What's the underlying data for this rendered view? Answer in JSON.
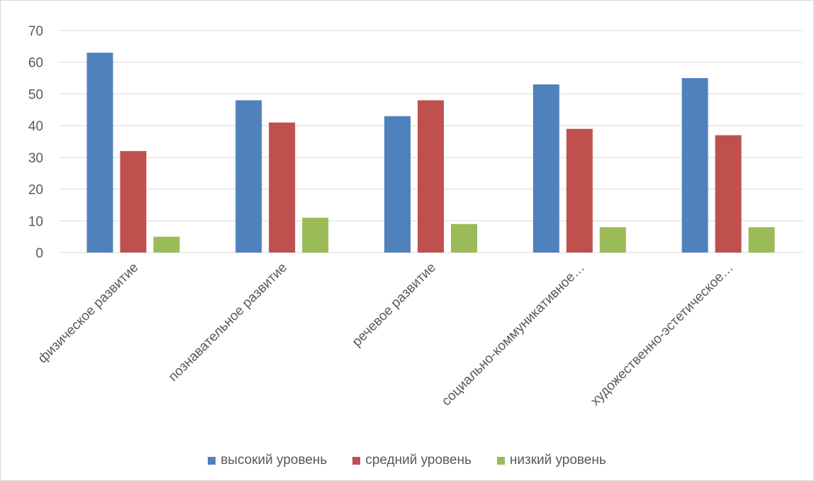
{
  "chart_data": {
    "type": "bar",
    "categories": [
      "физическое развитие",
      "познавательное развитие",
      "речевое развитие",
      "социально-коммуникативное…",
      "художественно-эстетическое…"
    ],
    "series": [
      {
        "name": "высокий уровень",
        "color": "#4F81BD",
        "values": [
          63,
          48,
          43,
          53,
          55
        ]
      },
      {
        "name": "средний уровень",
        "color": "#C0504D",
        "values": [
          32,
          41,
          48,
          39,
          37
        ]
      },
      {
        "name": "низкий уровень",
        "color": "#9BBB59",
        "values": [
          5,
          11,
          9,
          8,
          8
        ]
      }
    ],
    "yticks": [
      "0",
      "10",
      "20",
      "30",
      "40",
      "50",
      "60",
      "70"
    ],
    "ylim": [
      0,
      70
    ],
    "grid": true,
    "legend_position": "bottom"
  }
}
